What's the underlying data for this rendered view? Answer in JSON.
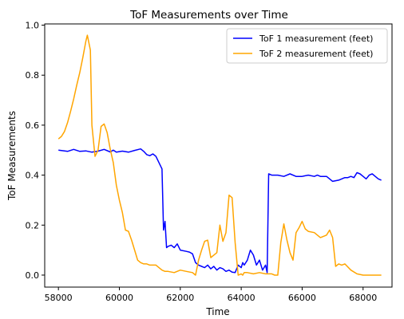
{
  "chart_data": {
    "type": "line",
    "title": "ToF Measurements over Time",
    "xlabel": "Time",
    "ylabel": "ToF Measurements",
    "xlim": [
      57550,
      68950
    ],
    "ylim": [
      -0.048,
      1.005
    ],
    "xticks": [
      58000,
      60000,
      62000,
      64000,
      66000,
      68000
    ],
    "yticks": [
      0.0,
      0.2,
      0.4,
      0.6,
      0.8,
      1.0
    ],
    "ytick_labels": [
      "0.0",
      "0.2",
      "0.4",
      "0.6",
      "0.8",
      "1.0"
    ],
    "grid": false,
    "legend_position": "top-right",
    "series": [
      {
        "name": "ToF 1 measurement (feet)",
        "color": "#0000ff",
        "x": [
          58000,
          58300,
          58500,
          58700,
          58900,
          59100,
          59300,
          59500,
          59700,
          59800,
          59900,
          60100,
          60300,
          60500,
          60700,
          60800,
          60900,
          61000,
          61100,
          61200,
          61300,
          61400,
          61450,
          61500,
          61550,
          61600,
          61700,
          61800,
          61900,
          62000,
          62200,
          62300,
          62400,
          62500,
          62600,
          62700,
          62800,
          62900,
          63000,
          63100,
          63200,
          63300,
          63400,
          63500,
          63600,
          63700,
          63800,
          63900,
          64000,
          64050,
          64100,
          64200,
          64300,
          64400,
          64500,
          64600,
          64700,
          64800,
          64850,
          64900,
          65000,
          65200,
          65400,
          65600,
          65800,
          66000,
          66200,
          66400,
          66500,
          66600,
          66800,
          67000,
          67200,
          67400,
          67500,
          67600,
          67700,
          67800,
          67900,
          68000,
          68100,
          68200,
          68300,
          68400,
          68500,
          68600
        ],
        "y": [
          0.5,
          0.495,
          0.503,
          0.495,
          0.497,
          0.492,
          0.496,
          0.503,
          0.493,
          0.5,
          0.492,
          0.496,
          0.492,
          0.499,
          0.505,
          0.495,
          0.482,
          0.478,
          0.485,
          0.475,
          0.45,
          0.425,
          0.18,
          0.215,
          0.11,
          0.115,
          0.12,
          0.11,
          0.125,
          0.1,
          0.095,
          0.092,
          0.085,
          0.05,
          0.04,
          0.035,
          0.03,
          0.04,
          0.025,
          0.035,
          0.02,
          0.03,
          0.025,
          0.015,
          0.02,
          0.012,
          0.01,
          0.04,
          0.03,
          0.05,
          0.04,
          0.06,
          0.1,
          0.08,
          0.04,
          0.06,
          0.02,
          0.04,
          0.01,
          0.405,
          0.4,
          0.4,
          0.395,
          0.405,
          0.395,
          0.395,
          0.4,
          0.395,
          0.4,
          0.395,
          0.395,
          0.375,
          0.38,
          0.39,
          0.39,
          0.395,
          0.39,
          0.41,
          0.405,
          0.395,
          0.385,
          0.4,
          0.405,
          0.395,
          0.385,
          0.38
        ]
      },
      {
        "name": "ToF 2 measurement (feet)",
        "color": "#ffa500",
        "x": [
          58000,
          58100,
          58200,
          58300,
          58400,
          58500,
          58600,
          58700,
          58800,
          58900,
          58950,
          59000,
          59050,
          59100,
          59200,
          59300,
          59400,
          59500,
          59600,
          59700,
          59800,
          59900,
          60000,
          60100,
          60200,
          60300,
          60400,
          60500,
          60600,
          60700,
          60800,
          60900,
          61000,
          61200,
          61300,
          61400,
          61500,
          61600,
          61800,
          62000,
          62200,
          62400,
          62500,
          62600,
          62700,
          62800,
          62900,
          63000,
          63100,
          63200,
          63300,
          63400,
          63500,
          63600,
          63700,
          63800,
          63900,
          64000,
          64050,
          64100,
          64200,
          64400,
          64600,
          64800,
          65000,
          65100,
          65200,
          65300,
          65400,
          65500,
          65600,
          65700,
          65800,
          65900,
          66000,
          66100,
          66200,
          66400,
          66600,
          66800,
          66900,
          67000,
          67100,
          67200,
          67300,
          67400,
          67600,
          67800,
          68000,
          68200,
          68400,
          68600
        ],
        "y": [
          0.545,
          0.555,
          0.575,
          0.61,
          0.655,
          0.705,
          0.76,
          0.81,
          0.87,
          0.935,
          0.96,
          0.93,
          0.9,
          0.6,
          0.475,
          0.5,
          0.595,
          0.605,
          0.57,
          0.505,
          0.45,
          0.36,
          0.3,
          0.25,
          0.18,
          0.175,
          0.14,
          0.1,
          0.06,
          0.05,
          0.045,
          0.045,
          0.04,
          0.04,
          0.03,
          0.02,
          0.015,
          0.015,
          0.01,
          0.02,
          0.015,
          0.01,
          0.0,
          0.06,
          0.1,
          0.135,
          0.14,
          0.07,
          0.08,
          0.09,
          0.2,
          0.135,
          0.17,
          0.32,
          0.31,
          0.13,
          0.0,
          0.005,
          0.0,
          0.01,
          0.01,
          0.005,
          0.01,
          0.005,
          0.005,
          0.0,
          0.0,
          0.13,
          0.205,
          0.14,
          0.09,
          0.06,
          0.17,
          0.19,
          0.215,
          0.185,
          0.175,
          0.17,
          0.15,
          0.16,
          0.18,
          0.15,
          0.035,
          0.045,
          0.04,
          0.045,
          0.02,
          0.005,
          0.0,
          0.0,
          0.0,
          0.0
        ]
      }
    ]
  }
}
